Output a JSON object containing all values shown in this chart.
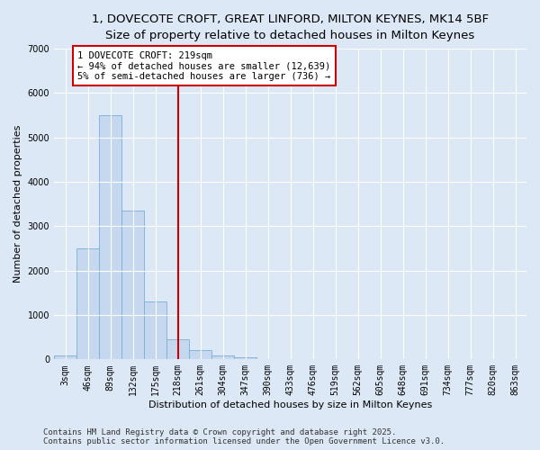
{
  "title_line1": "1, DOVECOTE CROFT, GREAT LINFORD, MILTON KEYNES, MK14 5BF",
  "title_line2": "Size of property relative to detached houses in Milton Keynes",
  "xlabel": "Distribution of detached houses by size in Milton Keynes",
  "ylabel": "Number of detached properties",
  "categories": [
    "3sqm",
    "46sqm",
    "89sqm",
    "132sqm",
    "175sqm",
    "218sqm",
    "261sqm",
    "304sqm",
    "347sqm",
    "390sqm",
    "433sqm",
    "476sqm",
    "519sqm",
    "562sqm",
    "605sqm",
    "648sqm",
    "691sqm",
    "734sqm",
    "777sqm",
    "820sqm",
    "863sqm"
  ],
  "values": [
    90,
    2500,
    5500,
    3350,
    1300,
    460,
    210,
    90,
    55,
    0,
    0,
    0,
    0,
    0,
    0,
    0,
    0,
    0,
    0,
    0,
    0
  ],
  "bar_color": "#c5d8f0",
  "bar_edge_color": "#7bafd4",
  "vline_color": "#cc0000",
  "annotation_text": "1 DOVECOTE CROFT: 219sqm\n← 94% of detached houses are smaller (12,639)\n5% of semi-detached houses are larger (736) →",
  "annotation_box_color": "#ffffff",
  "annotation_box_edge": "#cc0000",
  "ylim": [
    0,
    7000
  ],
  "yticks": [
    0,
    1000,
    2000,
    3000,
    4000,
    5000,
    6000,
    7000
  ],
  "bg_color": "#dce8f5",
  "grid_color": "#ffffff",
  "footer_line1": "Contains HM Land Registry data © Crown copyright and database right 2025.",
  "footer_line2": "Contains public sector information licensed under the Open Government Licence v3.0.",
  "title_fontsize": 9.5,
  "subtitle_fontsize": 8.5,
  "axis_label_fontsize": 8,
  "tick_fontsize": 7,
  "annotation_fontsize": 7.5,
  "footer_fontsize": 6.5
}
